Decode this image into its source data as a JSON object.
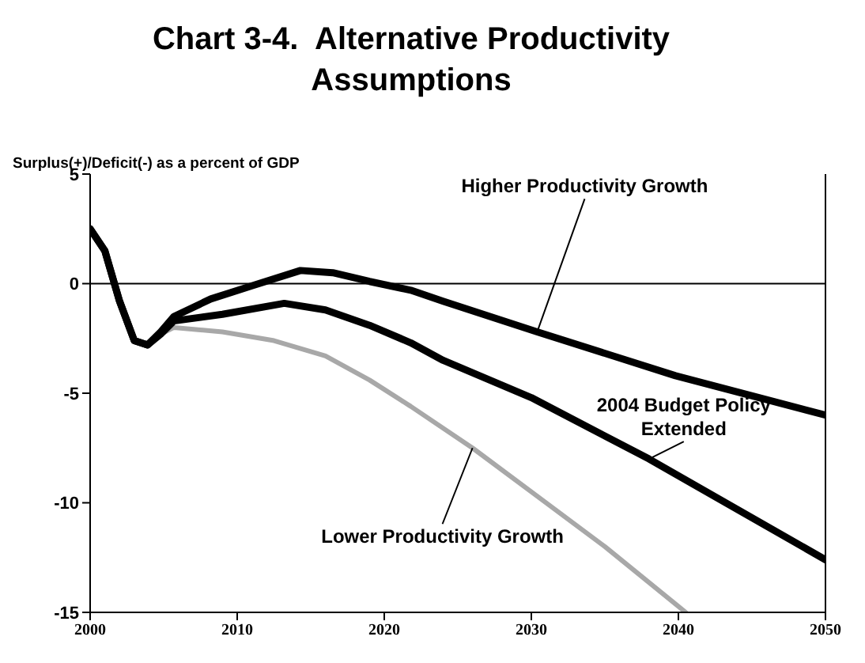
{
  "chart_data": {
    "type": "line",
    "title": "Chart 3-4.  Alternative Productivity Assumptions",
    "ylabel": "Surplus(+)/Deficit(-) as a percent of GDP",
    "xlim": [
      2000,
      2050
    ],
    "xticks": [
      2000,
      2010,
      2020,
      2030,
      2040,
      2050
    ],
    "ylim": [
      -15,
      5
    ],
    "yticks": [
      -15,
      -10,
      -5,
      0,
      5
    ],
    "grid": false,
    "legend": false,
    "marker": "none",
    "line_style": "solid",
    "ref_lines": [
      {
        "axis": "y",
        "value": 0,
        "color": "#000000"
      }
    ],
    "series": [
      {
        "name": "Higher Productivity Growth",
        "color": "#000000",
        "x": [
          2000,
          2001,
          2002,
          2003,
          2003.9,
          2004.8,
          2005.7,
          2008.2,
          2011,
          2014.3,
          2016.5,
          2019,
          2021.8,
          2024,
          2030.4,
          2039.8,
          2050
        ],
        "values": [
          2.5,
          1.5,
          -0.8,
          -2.6,
          -2.8,
          -2.2,
          -1.5,
          -0.7,
          -0.1,
          0.6,
          0.5,
          0.1,
          -0.3,
          -0.8,
          -2.2,
          -4.2,
          -6
        ]
      },
      {
        "name": "2004 Budget Policy Extended",
        "color": "#000000",
        "x": [
          2000,
          2001,
          2002,
          2003,
          2003.9,
          2004.8,
          2005.7,
          2009,
          2013.2,
          2016,
          2019,
          2021.8,
          2024,
          2030,
          2038,
          2050
        ],
        "values": [
          2.5,
          1.5,
          -0.8,
          -2.6,
          -2.8,
          -2.3,
          -1.7,
          -1.4,
          -0.9,
          -1.2,
          -1.9,
          -2.7,
          -3.5,
          -5.2,
          -8,
          -12.6
        ]
      },
      {
        "name": "Lower Productivity Growth",
        "color": "#a8a8a8",
        "x": [
          2000,
          2001,
          2002,
          2003,
          2003.9,
          2004.8,
          2005.7,
          2009,
          2012.5,
          2016,
          2019,
          2021.8,
          2026,
          2030,
          2035,
          2040.5
        ],
        "values": [
          2.5,
          1.5,
          -0.8,
          -2.6,
          -2.8,
          -2.3,
          -2,
          -2.2,
          -2.6,
          -3.3,
          -4.4,
          -5.6,
          -7.5,
          -9.5,
          -12,
          -15
        ]
      }
    ]
  }
}
